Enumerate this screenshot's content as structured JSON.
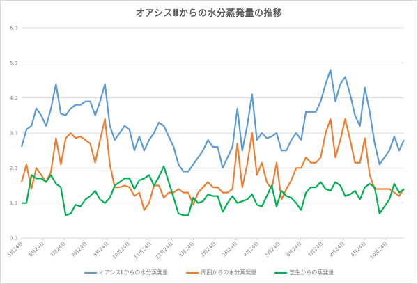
{
  "chart_data": {
    "type": "line",
    "title": "オアシスⅡからの水分蒸発量の推移",
    "xlabel": "",
    "ylabel": "",
    "ylim": [
      0,
      6
    ],
    "yticks": [
      "0.0",
      "1.0",
      "2.0",
      "3.0",
      "4.0",
      "5.0",
      "6.0"
    ],
    "grid": true,
    "legend_position": "bottom",
    "x_tick_labels": [
      "5月24日",
      "6月24日",
      "7月24日",
      "8月24日",
      "9月24日",
      "10月24日",
      "11月24日",
      "12月24日",
      "1月24日",
      "2月24日",
      "3月24日",
      "4月24日",
      "5月24日",
      "6月24日",
      "7月24日",
      "8月24日",
      "9月24日",
      "10月24日"
    ],
    "series": [
      {
        "name": "オアシスⅡからの水分蒸発量",
        "color": "#5b9bd5",
        "values": [
          2.6,
          3.1,
          3.2,
          3.7,
          3.5,
          3.2,
          3.7,
          4.4,
          3.55,
          3.5,
          3.7,
          3.8,
          3.8,
          3.9,
          3.9,
          3.5,
          3.9,
          4.4,
          3.2,
          2.8,
          3.0,
          3.2,
          3.1,
          2.5,
          2.9,
          2.5,
          2.8,
          3.0,
          3.3,
          3.2,
          2.9,
          2.6,
          2.1,
          1.9,
          1.9,
          2.1,
          2.3,
          2.5,
          2.8,
          2.6,
          2.6,
          2.0,
          2.3,
          2.6,
          3.7,
          2.5,
          3.2,
          4.1,
          2.8,
          3.0,
          2.85,
          2.9,
          3.0,
          2.5,
          2.5,
          2.8,
          3.0,
          2.8,
          3.6,
          3.6,
          3.6,
          3.9,
          4.4,
          4.8,
          3.9,
          4.4,
          4.6,
          4.1,
          3.5,
          3.2,
          4.3,
          3.6,
          2.7,
          2.1,
          2.3,
          2.5,
          2.9,
          2.5,
          2.8
        ]
      },
      {
        "name": "周囲からの水分蒸発量",
        "color": "#ed7d31",
        "values": [
          1.6,
          2.1,
          1.4,
          2.0,
          1.8,
          1.6,
          1.9,
          2.85,
          2.1,
          2.85,
          3.0,
          2.85,
          2.9,
          2.8,
          2.7,
          2.15,
          2.8,
          3.4,
          2.1,
          1.45,
          1.45,
          1.5,
          1.45,
          1.2,
          1.3,
          0.8,
          1.0,
          1.5,
          1.5,
          1.15,
          1.3,
          1.3,
          1.4,
          1.3,
          1.3,
          0.95,
          1.3,
          1.45,
          1.6,
          1.45,
          1.45,
          1.3,
          1.3,
          1.4,
          2.7,
          1.45,
          2.1,
          3.0,
          1.8,
          2.15,
          1.6,
          1.4,
          2.15,
          1.1,
          1.4,
          1.65,
          2.0,
          2.0,
          2.3,
          2.15,
          2.15,
          2.3,
          3.0,
          3.4,
          2.3,
          2.8,
          3.4,
          2.8,
          2.15,
          2.15,
          2.85,
          1.8,
          1.4,
          1.4,
          1.4,
          1.4,
          1.3,
          1.2,
          1.4
        ]
      },
      {
        "name": "芝生からの蒸発量",
        "color": "#00b050",
        "values": [
          1.0,
          1.0,
          1.8,
          1.7,
          1.7,
          1.6,
          1.8,
          1.55,
          1.45,
          0.65,
          0.7,
          0.95,
          0.9,
          1.1,
          1.2,
          1.35,
          1.1,
          1.0,
          1.15,
          1.5,
          1.6,
          1.7,
          1.7,
          1.4,
          1.65,
          1.7,
          1.8,
          1.5,
          1.75,
          2.05,
          1.6,
          1.15,
          0.7,
          0.65,
          0.65,
          1.15,
          1.0,
          1.05,
          1.25,
          1.2,
          1.2,
          0.75,
          1.0,
          1.2,
          1.0,
          1.05,
          1.1,
          1.25,
          0.95,
          0.9,
          1.2,
          1.5,
          0.9,
          1.35,
          1.2,
          1.15,
          1.0,
          0.8,
          1.3,
          1.45,
          1.45,
          1.6,
          1.4,
          1.35,
          1.6,
          1.5,
          1.2,
          1.25,
          1.35,
          1.1,
          1.45,
          1.55,
          1.45,
          0.7,
          0.9,
          1.1,
          1.55,
          1.3,
          1.4
        ]
      }
    ]
  }
}
